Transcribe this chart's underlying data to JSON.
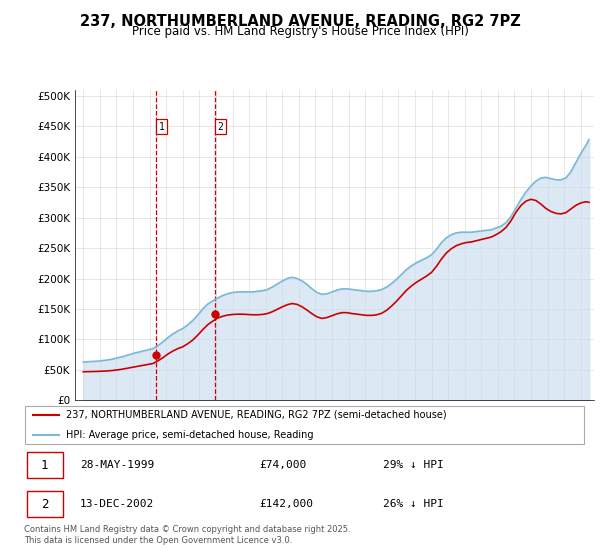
{
  "title": "237, NORTHUMBERLAND AVENUE, READING, RG2 7PZ",
  "subtitle": "Price paid vs. HM Land Registry's House Price Index (HPI)",
  "legend_line1": "237, NORTHUMBERLAND AVENUE, READING, RG2 7PZ (semi-detached house)",
  "legend_line2": "HPI: Average price, semi-detached house, Reading",
  "footnote": "Contains HM Land Registry data © Crown copyright and database right 2025.\nThis data is licensed under the Open Government Licence v3.0.",
  "purchase1_date": "28-MAY-1999",
  "purchase1_price": 74000,
  "purchase1_label": "£74,000",
  "purchase1_hpi": "29% ↓ HPI",
  "purchase2_date": "13-DEC-2002",
  "purchase2_price": 142000,
  "purchase2_label": "£142,000",
  "purchase2_hpi": "26% ↓ HPI",
  "purchase1_x": 1999.41,
  "purchase1_y": 74000,
  "purchase2_x": 2002.95,
  "purchase2_y": 142000,
  "hpi_color": "#7ab8d9",
  "price_color": "#cc0000",
  "purchase_marker_color": "#cc0000",
  "vline_color": "#cc0000",
  "shade_color": "#c6dbef",
  "ylim": [
    0,
    510000
  ],
  "yticks": [
    0,
    50000,
    100000,
    150000,
    200000,
    250000,
    300000,
    350000,
    400000,
    450000,
    500000
  ],
  "ytick_labels": [
    "£0",
    "£50K",
    "£100K",
    "£150K",
    "£200K",
    "£250K",
    "£300K",
    "£350K",
    "£400K",
    "£450K",
    "£500K"
  ],
  "xlim": [
    1994.5,
    2025.8
  ],
  "hpi_data": [
    [
      1995.0,
      63000
    ],
    [
      1995.3,
      63500
    ],
    [
      1995.6,
      64000
    ],
    [
      1995.9,
      64500
    ],
    [
      1996.2,
      65500
    ],
    [
      1996.5,
      66500
    ],
    [
      1996.8,
      68000
    ],
    [
      1997.1,
      70000
    ],
    [
      1997.4,
      72000
    ],
    [
      1997.7,
      74500
    ],
    [
      1998.0,
      77000
    ],
    [
      1998.3,
      79000
    ],
    [
      1998.6,
      81000
    ],
    [
      1998.9,
      83000
    ],
    [
      1999.2,
      85000
    ],
    [
      1999.5,
      90000
    ],
    [
      1999.8,
      96000
    ],
    [
      2000.1,
      103000
    ],
    [
      2000.4,
      109000
    ],
    [
      2000.7,
      114000
    ],
    [
      2001.0,
      118000
    ],
    [
      2001.3,
      124000
    ],
    [
      2001.6,
      131000
    ],
    [
      2001.9,
      140000
    ],
    [
      2002.2,
      150000
    ],
    [
      2002.5,
      158000
    ],
    [
      2002.8,
      163000
    ],
    [
      2003.1,
      168000
    ],
    [
      2003.4,
      172000
    ],
    [
      2003.7,
      175000
    ],
    [
      2004.0,
      177000
    ],
    [
      2004.3,
      178000
    ],
    [
      2004.6,
      178000
    ],
    [
      2004.9,
      178000
    ],
    [
      2005.2,
      178000
    ],
    [
      2005.5,
      179000
    ],
    [
      2005.8,
      180000
    ],
    [
      2006.1,
      182000
    ],
    [
      2006.4,
      186000
    ],
    [
      2006.7,
      191000
    ],
    [
      2007.0,
      196000
    ],
    [
      2007.3,
      200000
    ],
    [
      2007.6,
      202000
    ],
    [
      2007.9,
      200000
    ],
    [
      2008.2,
      196000
    ],
    [
      2008.5,
      190000
    ],
    [
      2008.8,
      183000
    ],
    [
      2009.1,
      177000
    ],
    [
      2009.4,
      174000
    ],
    [
      2009.7,
      175000
    ],
    [
      2010.0,
      178000
    ],
    [
      2010.3,
      181000
    ],
    [
      2010.6,
      183000
    ],
    [
      2010.9,
      183000
    ],
    [
      2011.2,
      182000
    ],
    [
      2011.5,
      181000
    ],
    [
      2011.8,
      180000
    ],
    [
      2012.1,
      179000
    ],
    [
      2012.4,
      179000
    ],
    [
      2012.7,
      180000
    ],
    [
      2013.0,
      182000
    ],
    [
      2013.3,
      186000
    ],
    [
      2013.6,
      192000
    ],
    [
      2013.9,
      199000
    ],
    [
      2014.2,
      207000
    ],
    [
      2014.5,
      215000
    ],
    [
      2014.8,
      221000
    ],
    [
      2015.1,
      226000
    ],
    [
      2015.4,
      230000
    ],
    [
      2015.7,
      234000
    ],
    [
      2016.0,
      239000
    ],
    [
      2016.3,
      248000
    ],
    [
      2016.6,
      259000
    ],
    [
      2016.9,
      267000
    ],
    [
      2017.2,
      272000
    ],
    [
      2017.5,
      275000
    ],
    [
      2017.8,
      276000
    ],
    [
      2018.1,
      276000
    ],
    [
      2018.4,
      276000
    ],
    [
      2018.7,
      277000
    ],
    [
      2019.0,
      278000
    ],
    [
      2019.3,
      279000
    ],
    [
      2019.6,
      280000
    ],
    [
      2019.9,
      283000
    ],
    [
      2020.2,
      286000
    ],
    [
      2020.5,
      292000
    ],
    [
      2020.8,
      302000
    ],
    [
      2021.1,
      316000
    ],
    [
      2021.4,
      330000
    ],
    [
      2021.7,
      342000
    ],
    [
      2022.0,
      352000
    ],
    [
      2022.3,
      360000
    ],
    [
      2022.6,
      365000
    ],
    [
      2022.9,
      366000
    ],
    [
      2023.2,
      364000
    ],
    [
      2023.5,
      362000
    ],
    [
      2023.8,
      362000
    ],
    [
      2024.1,
      365000
    ],
    [
      2024.4,
      375000
    ],
    [
      2024.7,
      390000
    ],
    [
      2025.0,
      405000
    ],
    [
      2025.3,
      418000
    ],
    [
      2025.5,
      428000
    ]
  ],
  "price_data": [
    [
      1995.0,
      47000
    ],
    [
      1995.3,
      47200
    ],
    [
      1995.6,
      47400
    ],
    [
      1995.9,
      47600
    ],
    [
      1996.2,
      48000
    ],
    [
      1996.5,
      48500
    ],
    [
      1996.8,
      49200
    ],
    [
      1997.1,
      50200
    ],
    [
      1997.4,
      51500
    ],
    [
      1997.7,
      53000
    ],
    [
      1998.0,
      54500
    ],
    [
      1998.3,
      56000
    ],
    [
      1998.6,
      57500
    ],
    [
      1998.9,
      59000
    ],
    [
      1999.2,
      60500
    ],
    [
      1999.5,
      65000
    ],
    [
      1999.8,
      70000
    ],
    [
      2000.1,
      76000
    ],
    [
      2000.4,
      81000
    ],
    [
      2000.7,
      85000
    ],
    [
      2001.0,
      88000
    ],
    [
      2001.3,
      93000
    ],
    [
      2001.6,
      99000
    ],
    [
      2001.9,
      107000
    ],
    [
      2002.2,
      116000
    ],
    [
      2002.5,
      124000
    ],
    [
      2002.8,
      130000
    ],
    [
      2003.1,
      135000
    ],
    [
      2003.4,
      138000
    ],
    [
      2003.7,
      140000
    ],
    [
      2004.0,
      141000
    ],
    [
      2004.3,
      141500
    ],
    [
      2004.6,
      141500
    ],
    [
      2004.9,
      141000
    ],
    [
      2005.2,
      140500
    ],
    [
      2005.5,
      140500
    ],
    [
      2005.8,
      141000
    ],
    [
      2006.1,
      142500
    ],
    [
      2006.4,
      145500
    ],
    [
      2006.7,
      149500
    ],
    [
      2007.0,
      153500
    ],
    [
      2007.3,
      157000
    ],
    [
      2007.6,
      159000
    ],
    [
      2007.9,
      157500
    ],
    [
      2008.2,
      153500
    ],
    [
      2008.5,
      148000
    ],
    [
      2008.8,
      142000
    ],
    [
      2009.1,
      137000
    ],
    [
      2009.4,
      134500
    ],
    [
      2009.7,
      136000
    ],
    [
      2010.0,
      139000
    ],
    [
      2010.3,
      142000
    ],
    [
      2010.6,
      144000
    ],
    [
      2010.9,
      144000
    ],
    [
      2011.2,
      142500
    ],
    [
      2011.5,
      141500
    ],
    [
      2011.8,
      140500
    ],
    [
      2012.1,
      139500
    ],
    [
      2012.4,
      139500
    ],
    [
      2012.7,
      140500
    ],
    [
      2013.0,
      143000
    ],
    [
      2013.3,
      148000
    ],
    [
      2013.6,
      155000
    ],
    [
      2013.9,
      163000
    ],
    [
      2014.2,
      172000
    ],
    [
      2014.5,
      181000
    ],
    [
      2014.8,
      188000
    ],
    [
      2015.1,
      194000
    ],
    [
      2015.4,
      199000
    ],
    [
      2015.7,
      204000
    ],
    [
      2016.0,
      210000
    ],
    [
      2016.3,
      220000
    ],
    [
      2016.6,
      232000
    ],
    [
      2016.9,
      242000
    ],
    [
      2017.2,
      249000
    ],
    [
      2017.5,
      254000
    ],
    [
      2017.8,
      257000
    ],
    [
      2018.1,
      259000
    ],
    [
      2018.4,
      260000
    ],
    [
      2018.7,
      262000
    ],
    [
      2019.0,
      264000
    ],
    [
      2019.3,
      266000
    ],
    [
      2019.6,
      268000
    ],
    [
      2019.9,
      272000
    ],
    [
      2020.2,
      277000
    ],
    [
      2020.5,
      284000
    ],
    [
      2020.8,
      295000
    ],
    [
      2021.1,
      309000
    ],
    [
      2021.4,
      320000
    ],
    [
      2021.7,
      327000
    ],
    [
      2022.0,
      330000
    ],
    [
      2022.3,
      328000
    ],
    [
      2022.6,
      322000
    ],
    [
      2022.9,
      315000
    ],
    [
      2023.2,
      310000
    ],
    [
      2023.5,
      307000
    ],
    [
      2023.8,
      306000
    ],
    [
      2024.1,
      308000
    ],
    [
      2024.4,
      314000
    ],
    [
      2024.7,
      320000
    ],
    [
      2025.0,
      324000
    ],
    [
      2025.3,
      326000
    ],
    [
      2025.5,
      325000
    ]
  ]
}
